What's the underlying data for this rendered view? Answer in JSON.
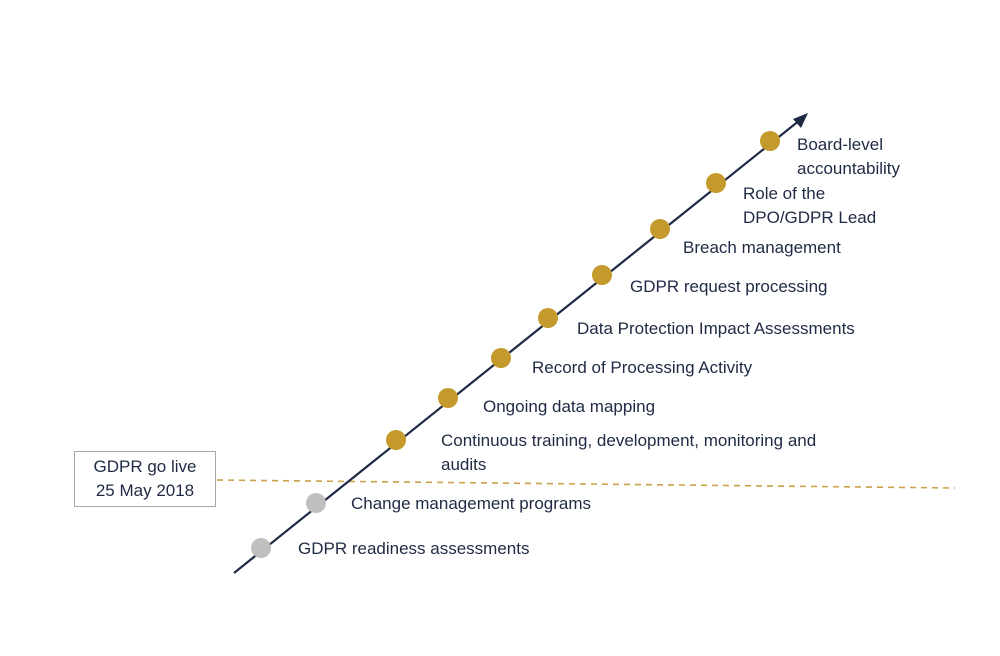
{
  "golive": {
    "line1": "GDPR go live",
    "line2": "25 May 2018"
  },
  "milestones": [
    {
      "label": "GDPR readiness assessments",
      "status": "pre-golive"
    },
    {
      "label": "Change management  programs",
      "status": "pre-golive"
    },
    {
      "label": "Continuous training, development, monitoring and\naudits",
      "status": "post-golive"
    },
    {
      "label": "Ongoing data mapping",
      "status": "post-golive"
    },
    {
      "label": "Record of Processing Activity",
      "status": "post-golive"
    },
    {
      "label": "Data Protection Impact Assessments",
      "status": "post-golive"
    },
    {
      "label": "GDPR request processing",
      "status": "post-golive"
    },
    {
      "label": "Breach management",
      "status": "post-golive"
    },
    {
      "label": "Role of  the\nDPO/GDPR  Lead",
      "status": "post-golive"
    },
    {
      "label": "Board-level\naccountability",
      "status": "post-golive"
    }
  ],
  "colors": {
    "arrow": "#1f2a44",
    "pre_golive_dot": "#bfbfbf",
    "post_golive_dot": "#c49a2c",
    "golive_line": "#c9a24a",
    "text": "#1f2a44"
  }
}
